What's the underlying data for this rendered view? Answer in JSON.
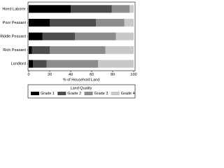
{
  "chart_data": {
    "type": "stacked-bar-horizontal",
    "categories": [
      "Hired Laborer",
      "Poor Peasant",
      "Middle Peasant",
      "Rich Peasant",
      "Landlord"
    ],
    "series": [
      {
        "name": "Grade 1",
        "color": "#000000",
        "values": [
          40,
          20,
          13,
          3,
          4
        ]
      },
      {
        "name": "Grade 2",
        "color": "#4d4d4d",
        "values": [
          39,
          44,
          31,
          17,
          13
        ]
      },
      {
        "name": "Grade 3",
        "color": "#8c8c8c",
        "values": [
          17,
          27,
          39,
          53,
          49
        ]
      },
      {
        "name": "Grade 4",
        "color": "#c8c8c8",
        "values": [
          4,
          9,
          17,
          27,
          34
        ]
      }
    ],
    "xlabel": "% of Household Land",
    "xlim": [
      0,
      100
    ],
    "xticks": [
      0,
      20,
      40,
      60,
      80,
      100
    ],
    "legend_title": "Land Quality",
    "legend": "bottom"
  }
}
